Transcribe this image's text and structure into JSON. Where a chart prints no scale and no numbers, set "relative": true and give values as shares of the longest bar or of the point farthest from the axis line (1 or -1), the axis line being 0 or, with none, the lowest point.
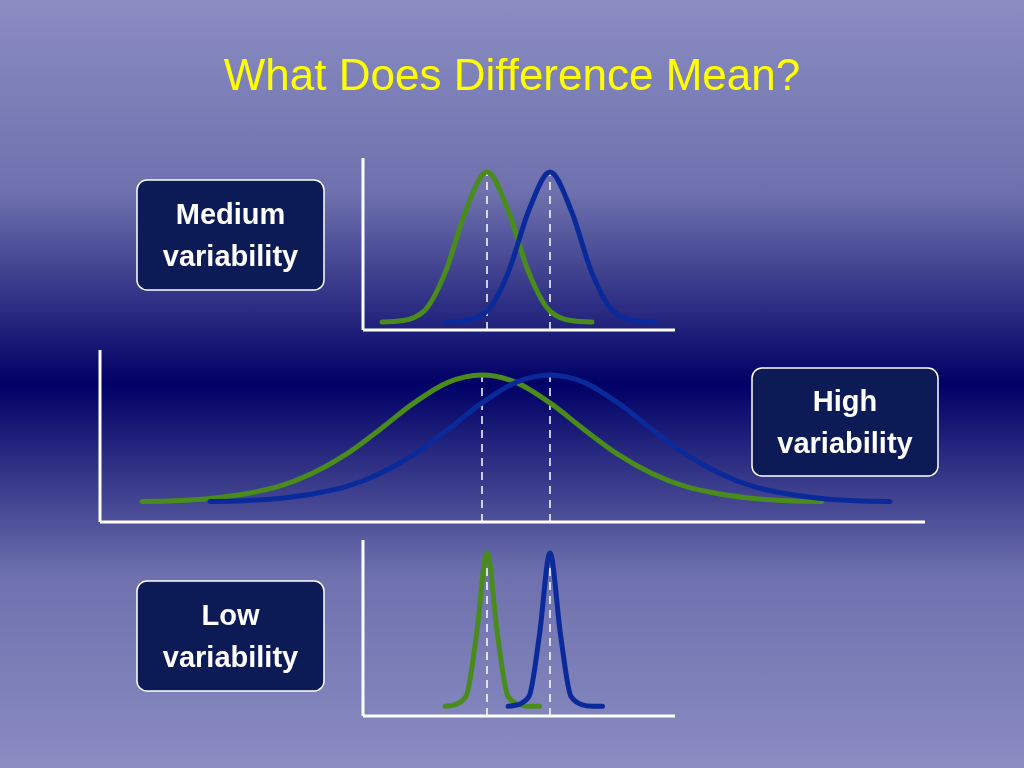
{
  "chart_data": [
    {
      "type": "line",
      "title": "What Does Difference Mean?",
      "annotations": [
        "Medium variability"
      ],
      "relative": true,
      "line_style": "solid",
      "categories": [
        null,
        null,
        null,
        null,
        null,
        null,
        null,
        null,
        null,
        null,
        null,
        null,
        null,
        null
      ],
      "series": [
        {
          "color": "#4a8c1c",
          "values": [
            0.05,
            0.06,
            0.12,
            0.36,
            0.76,
            1,
            0.76,
            0.36,
            0.12,
            0.06,
            0.05,
            null,
            null,
            null
          ]
        },
        {
          "color": "#0a2a9c",
          "values": [
            null,
            null,
            null,
            0.05,
            0.06,
            0.12,
            0.36,
            0.76,
            1,
            0.76,
            0.36,
            0.12,
            0.06,
            0.05
          ]
        }
      ]
    },
    {
      "type": "line",
      "annotations": [
        "High variability"
      ],
      "relative": true,
      "line_style": "solid",
      "categories": [
        null,
        null,
        null,
        null,
        null,
        null,
        null,
        null,
        null,
        null,
        null,
        null,
        null,
        null,
        null,
        null,
        null,
        null,
        null,
        null,
        null,
        null,
        null
      ],
      "series": [
        {
          "color": "#4a8c1c",
          "values": [
            0.14,
            0.145,
            0.16,
            0.19,
            0.24,
            0.33,
            0.46,
            0.63,
            0.81,
            0.95,
            1,
            0.95,
            0.81,
            0.63,
            0.46,
            0.33,
            0.24,
            0.19,
            0.16,
            0.145,
            0.14,
            null,
            null
          ]
        },
        {
          "color": "#0a2a9c",
          "values": [
            null,
            null,
            0.14,
            0.145,
            0.16,
            0.19,
            0.24,
            0.33,
            0.46,
            0.63,
            0.81,
            0.95,
            1,
            0.95,
            0.81,
            0.63,
            0.46,
            0.33,
            0.24,
            0.19,
            0.16,
            0.145,
            0.14
          ]
        }
      ]
    },
    {
      "type": "line",
      "annotations": [
        "Low variability"
      ],
      "relative": true,
      "line_style": "solid",
      "categories": [
        null,
        null,
        null,
        null,
        null,
        null,
        null,
        null,
        null,
        null,
        null,
        null,
        null,
        null,
        null,
        null
      ],
      "series": [
        {
          "color": "#4a8c1c",
          "values": [
            0.06,
            0.07,
            0.12,
            0.5,
            1,
            0.5,
            0.12,
            0.07,
            0.06,
            0.06,
            null,
            null,
            null,
            null,
            null,
            null
          ]
        },
        {
          "color": "#0a2a9c",
          "values": [
            null,
            null,
            null,
            null,
            null,
            null,
            0.06,
            0.07,
            0.12,
            0.5,
            1,
            0.5,
            0.12,
            0.07,
            0.06,
            0.06
          ]
        }
      ]
    }
  ]
}
